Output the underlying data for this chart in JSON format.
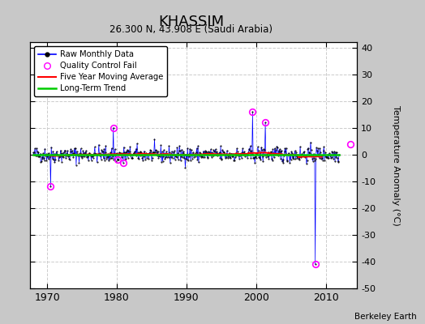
{
  "title": "KHASSIM",
  "subtitle": "26.300 N, 43.908 E (Saudi Arabia)",
  "ylabel": "Temperature Anomaly (°C)",
  "credit": "Berkeley Earth",
  "xlim": [
    1967.5,
    2014.5
  ],
  "ylim": [
    -50,
    42
  ],
  "yticks": [
    -50,
    -40,
    -30,
    -20,
    -10,
    0,
    10,
    20,
    30,
    40
  ],
  "xticks": [
    1970,
    1980,
    1990,
    2000,
    2010
  ],
  "fig_bg_color": "#c8c8c8",
  "plot_bg_color": "#ffffff",
  "raw_color": "#0000ff",
  "qc_color": "#ff00ff",
  "moving_avg_color": "#ff0000",
  "trend_color": "#00cc00",
  "grid_color": "#cccccc",
  "seed": 42,
  "n_points": 528,
  "start_year": 1968.0,
  "anomaly_std": 1.5,
  "qc_fails": [
    {
      "year": 1970.5,
      "value": -12
    },
    {
      "year": 1979.5,
      "value": 10
    },
    {
      "year": 1980.1,
      "value": -2
    },
    {
      "year": 1980.9,
      "value": -3
    },
    {
      "year": 1999.5,
      "value": 16
    },
    {
      "year": 2001.3,
      "value": 12
    },
    {
      "year": 2008.5,
      "value": -41
    },
    {
      "year": 2013.5,
      "value": 4
    }
  ]
}
